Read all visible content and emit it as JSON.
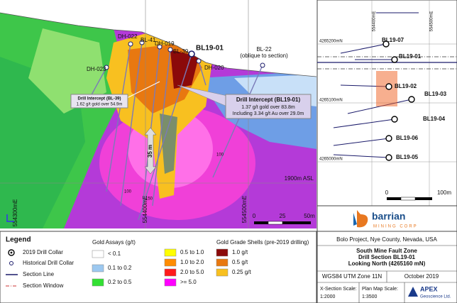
{
  "section": {
    "collars": [
      "DH-022",
      "BL-41",
      "DH-019",
      "BL-39",
      "BL19-01",
      "DH-023",
      "DH-020"
    ],
    "bl22": {
      "name": "BL-22",
      "note": "(oblique to section)"
    },
    "callout_bl39": {
      "title": "Drill Intercept (BL-39)",
      "text": "1.62 g/t gold over 54.9m"
    },
    "callout_bl1901": {
      "title": "Drill Intercept (BL19-01)",
      "line1": "1.37 g/t gold over 83.8m",
      "line2": "Including 3.34 g/t Au over 29.0m"
    },
    "width_label": "35 m",
    "elevation": "1900m ASL",
    "depth_labels": [
      "100",
      "150",
      "100"
    ],
    "eastings": [
      "554300mE",
      "554400mE",
      "554500mE"
    ],
    "scale": [
      "0",
      "25",
      "50m"
    ]
  },
  "plan": {
    "eastings": [
      "554400mE",
      "554500mE"
    ],
    "northings": [
      "4265200mN",
      "4265100mN",
      "4265000mN"
    ],
    "holes": [
      "BL19-07",
      "BL19-01",
      "BL19-02",
      "BL19-03",
      "BL19-04",
      "BL19-06",
      "BL19-05"
    ],
    "scale": [
      "0",
      "100m"
    ]
  },
  "logo": {
    "name": "barrian",
    "tagline": "MINING CORP"
  },
  "legend": {
    "title": "Legend",
    "symbols": [
      "2019 Drill Collar",
      "Historical Drill Collar",
      "Section Line",
      "Section Window"
    ],
    "gold_assays": {
      "title": "Gold Assays (g/t)",
      "items": [
        {
          "label": "< 0.1",
          "color": "#ffffff"
        },
        {
          "label": "0.1 to 0.2",
          "color": "#9cc8f0"
        },
        {
          "label": "0.2 to 0.5",
          "color": "#33e033"
        },
        {
          "label": "0.5 to 1.0",
          "color": "#ffff00"
        },
        {
          "label": "1.0 to 2.0",
          "color": "#ff8c00"
        },
        {
          "label": "2.0 to 5.0",
          "color": "#ff1a1a"
        },
        {
          "label": ">= 5.0",
          "color": "#ff00ff"
        }
      ]
    },
    "shells": {
      "title": "Gold Grade Shells (pre-2019 drilling)",
      "items": [
        {
          "label": "1.0 g/t",
          "color": "#8b0a0a"
        },
        {
          "label": "0.5 g/t",
          "color": "#e87810"
        },
        {
          "label": "0.25 g/t",
          "color": "#f8c020"
        }
      ]
    }
  },
  "title_block": {
    "location": "Bolo Project, Nye County, Nevada, USA",
    "title1": "South Mine Fault Zone",
    "title2": "Drill Section BL19-01",
    "title3": "Looking North (4265160 mN)",
    "datum": "WGS84 UTM Zone 11N",
    "date": "October 2019",
    "xs_scale_label": "X-Section Scale:",
    "xs_scale": "1:2000",
    "plan_scale_label": "Plan Map Scale:",
    "plan_scale": "1:3500",
    "company": "APEX",
    "company_sub": "Geoscience Ltd."
  }
}
